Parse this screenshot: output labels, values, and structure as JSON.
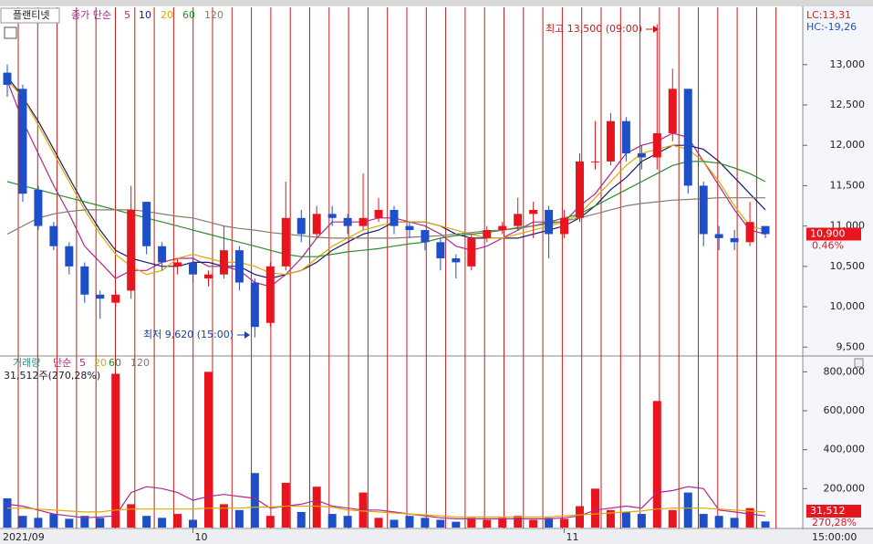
{
  "chart_data": [
    {
      "type": "candlestick",
      "title": "플랜티넷",
      "legend_label": "종가 단순",
      "lc_label": "LC:13,31",
      "hc_label": "HC:-19,26",
      "high_annotation": "최고 13,500 (09:00)",
      "low_annotation": "최저 9,620 (15:00)",
      "last_price": {
        "value": 10900,
        "label": "10,900"
      },
      "change_label": "0.46%",
      "categories": [
        "2021/09",
        null,
        null,
        null,
        null,
        null,
        null,
        null,
        null,
        null,
        null,
        null,
        "10",
        null,
        null,
        null,
        null,
        null,
        null,
        null,
        null,
        null,
        null,
        null,
        null,
        null,
        null,
        null,
        null,
        null,
        null,
        null,
        null,
        null,
        null,
        null,
        "11",
        null,
        null,
        null,
        null,
        null,
        null,
        null,
        null,
        null,
        null,
        null,
        null,
        null
      ],
      "time_label": "15:00:00",
      "up_color": "#e8141e",
      "down_color": "#1f4fc8",
      "open": [
        12900,
        12700,
        11450,
        11000,
        10750,
        10500,
        10150,
        10050,
        10200,
        11300,
        10750,
        10500,
        10550,
        10350,
        10400,
        10700,
        10300,
        9800,
        10500,
        11100,
        10900,
        11150,
        11100,
        11000,
        11100,
        11200,
        11000,
        10950,
        10800,
        10600,
        10500,
        10850,
        10950,
        11000,
        11150,
        11200,
        10900,
        11100,
        11800,
        11800,
        12300,
        11900,
        11850,
        12150,
        12700,
        11500,
        10900,
        10850,
        10800,
        11000
      ],
      "high": [
        13000,
        12750,
        11500,
        11050,
        10800,
        10550,
        10200,
        10200,
        11500,
        11300,
        10800,
        10600,
        10600,
        10450,
        11000,
        10750,
        10350,
        10550,
        11550,
        11200,
        11250,
        11250,
        11150,
        11650,
        11350,
        11250,
        11050,
        10950,
        10850,
        10650,
        10900,
        11000,
        11050,
        11350,
        11300,
        11250,
        11200,
        11900,
        12300,
        12400,
        12350,
        12000,
        13500,
        12950,
        12700,
        11550,
        11000,
        10950,
        11300,
        11000
      ],
      "low": [
        12600,
        11300,
        10950,
        10700,
        10400,
        10050,
        9850,
        10000,
        10100,
        10650,
        10450,
        10400,
        10300,
        10250,
        10350,
        10200,
        9620,
        9750,
        10450,
        10800,
        10850,
        11000,
        10900,
        10950,
        11050,
        10900,
        10850,
        10700,
        10450,
        10350,
        10450,
        10800,
        10900,
        10950,
        10850,
        10600,
        10850,
        11050,
        11700,
        11750,
        11800,
        11700,
        11700,
        12050,
        11400,
        10750,
        10700,
        10700,
        10750,
        10850
      ],
      "close": [
        12750,
        11400,
        11000,
        10750,
        10500,
        10150,
        10100,
        10150,
        11200,
        10750,
        10550,
        10550,
        10400,
        10400,
        10700,
        10300,
        9750,
        10500,
        11100,
        10900,
        11150,
        11100,
        11000,
        11100,
        11200,
        11000,
        10950,
        10800,
        10600,
        10550,
        10850,
        10950,
        11000,
        11150,
        11200,
        10900,
        11100,
        11800,
        11800,
        12300,
        11900,
        11850,
        12150,
        12700,
        11500,
        10900,
        10850,
        10800,
        11050,
        10900
      ],
      "series": [
        {
          "name": "5",
          "color": "#b0268c",
          "values": [
            12800,
            12300,
            11900,
            11500,
            11150,
            10750,
            10550,
            10350,
            10450,
            10450,
            10550,
            10600,
            10600,
            10500,
            10500,
            10450,
            10300,
            10250,
            10400,
            10600,
            10850,
            11050,
            11050,
            11050,
            11100,
            11100,
            11050,
            11000,
            10900,
            10750,
            10700,
            10750,
            10850,
            10950,
            11050,
            11050,
            11050,
            11250,
            11400,
            11650,
            11900,
            12000,
            12050,
            12150,
            12100,
            11800,
            11500,
            11200,
            10950,
            10900
          ]
        },
        {
          "name": "10",
          "color": "#1a1a6e",
          "values": [
            12850,
            12600,
            12300,
            11950,
            11600,
            11250,
            10950,
            10700,
            10600,
            10550,
            10500,
            10500,
            10550,
            10550,
            10500,
            10500,
            10400,
            10350,
            10400,
            10450,
            10550,
            10700,
            10800,
            10900,
            10950,
            11050,
            11050,
            11050,
            11000,
            10900,
            10850,
            10850,
            10850,
            10850,
            10900,
            10950,
            11000,
            11100,
            11250,
            11450,
            11600,
            11800,
            11900,
            12000,
            12000,
            11950,
            11800,
            11600,
            11400,
            11200
          ]
        },
        {
          "name": "20",
          "color": "#e0a800",
          "values": [
            12800,
            12600,
            12250,
            11900,
            11550,
            11200,
            10900,
            10650,
            10500,
            10400,
            10450,
            10600,
            10650,
            10600,
            10550,
            10550,
            10500,
            10420,
            10400,
            10450,
            10600,
            10750,
            10850,
            10950,
            11000,
            11050,
            11050,
            11050,
            11000,
            10950,
            10900,
            10850,
            10850,
            10900,
            10950,
            11000,
            11050,
            11150,
            11350,
            11550,
            11750,
            11900,
            11950,
            12000,
            11950,
            11800,
            11550,
            11250,
            11000,
            10950
          ]
        },
        {
          "name": "60",
          "color": "#2e8b2e",
          "values": [
            11550,
            11500,
            11450,
            11400,
            11350,
            11300,
            11250,
            11200,
            11150,
            11100,
            11050,
            11000,
            10950,
            10900,
            10850,
            10800,
            10750,
            10700,
            10650,
            10620,
            10620,
            10650,
            10680,
            10700,
            10720,
            10750,
            10780,
            10800,
            10850,
            10880,
            10900,
            10920,
            10950,
            10980,
            11000,
            11050,
            11100,
            11150,
            11250,
            11350,
            11450,
            11550,
            11650,
            11750,
            11800,
            11800,
            11780,
            11720,
            11650,
            11550
          ]
        },
        {
          "name": "120",
          "color": "#8a7a6a",
          "values": [
            10900,
            11000,
            11100,
            11150,
            11180,
            11200,
            11200,
            11200,
            11200,
            11180,
            11150,
            11120,
            11100,
            11050,
            11000,
            10970,
            10950,
            10920,
            10900,
            10880,
            10860,
            10850,
            10850,
            10850,
            10850,
            10850,
            10860,
            10870,
            10880,
            10900,
            10920,
            10940,
            10950,
            10970,
            11000,
            11030,
            11060,
            11100,
            11150,
            11200,
            11250,
            11280,
            11300,
            11320,
            11330,
            11340,
            11350,
            11350,
            11350,
            11350
          ]
        }
      ],
      "ylim": [
        9390,
        13710
      ],
      "yticks": [
        {
          "value": 9500,
          "label": "9,500"
        },
        {
          "value": 10000,
          "label": "10,000"
        },
        {
          "value": 10500,
          "label": "10,500"
        },
        {
          "value": 11000,
          "label": "11,000"
        },
        {
          "value": 11500,
          "label": "11,500"
        },
        {
          "value": 12000,
          "label": "12,000"
        },
        {
          "value": 12500,
          "label": "12,500"
        },
        {
          "value": 13000,
          "label": "13,000"
        }
      ]
    },
    {
      "type": "bar",
      "title": "거래량",
      "legend_label": "단순",
      "legend_extra": [
        "60",
        "120"
      ],
      "summary": "31,512주(270,28%)",
      "last_volume": {
        "value": 31512,
        "label": "31,512"
      },
      "ratio_label": "270,28%",
      "values": [
        150000,
        60000,
        50000,
        70000,
        45000,
        60000,
        50000,
        790000,
        120000,
        60000,
        50000,
        70000,
        40000,
        800000,
        120000,
        90000,
        280000,
        60000,
        230000,
        80000,
        210000,
        70000,
        60000,
        180000,
        50000,
        40000,
        60000,
        50000,
        40000,
        30000,
        50000,
        40000,
        50000,
        60000,
        40000,
        50000,
        45000,
        110000,
        200000,
        90000,
        80000,
        70000,
        650000,
        90000,
        180000,
        70000,
        60000,
        50000,
        100000,
        31512
      ],
      "series": [
        {
          "name": "5",
          "color": "#b0268c",
          "values": [
            120000,
            110000,
            90000,
            70000,
            60000,
            50000,
            55000,
            60000,
            180000,
            210000,
            200000,
            180000,
            140000,
            160000,
            170000,
            160000,
            150000,
            100000,
            110000,
            120000,
            140000,
            110000,
            100000,
            90000,
            90000,
            80000,
            70000,
            60000,
            50000,
            45000,
            45000,
            45000,
            45000,
            45000,
            45000,
            45000,
            50000,
            60000,
            90000,
            100000,
            110000,
            100000,
            180000,
            190000,
            210000,
            200000,
            90000,
            80000,
            70000,
            60000
          ]
        },
        {
          "name": "20",
          "color": "#e0a800",
          "values": [
            100000,
            100000,
            95000,
            90000,
            85000,
            80000,
            80000,
            90000,
            95000,
            95000,
            95000,
            95000,
            95000,
            100000,
            100000,
            100000,
            105000,
            105000,
            110000,
            110000,
            110000,
            105000,
            90000,
            85000,
            80000,
            75000,
            70000,
            65000,
            60000,
            55000,
            55000,
            55000,
            55000,
            55000,
            55000,
            55000,
            60000,
            65000,
            70000,
            75000,
            80000,
            85000,
            95000,
            100000,
            100000,
            100000,
            95000,
            90000,
            85000,
            80000
          ]
        }
      ],
      "ylim": [
        0,
        872000
      ],
      "yticks": [
        {
          "value": 200000,
          "label": "200,000"
        },
        {
          "value": 400000,
          "label": "400,000"
        },
        {
          "value": 600000,
          "label": "600,000"
        },
        {
          "value": 800000,
          "label": "800,000"
        }
      ]
    }
  ]
}
